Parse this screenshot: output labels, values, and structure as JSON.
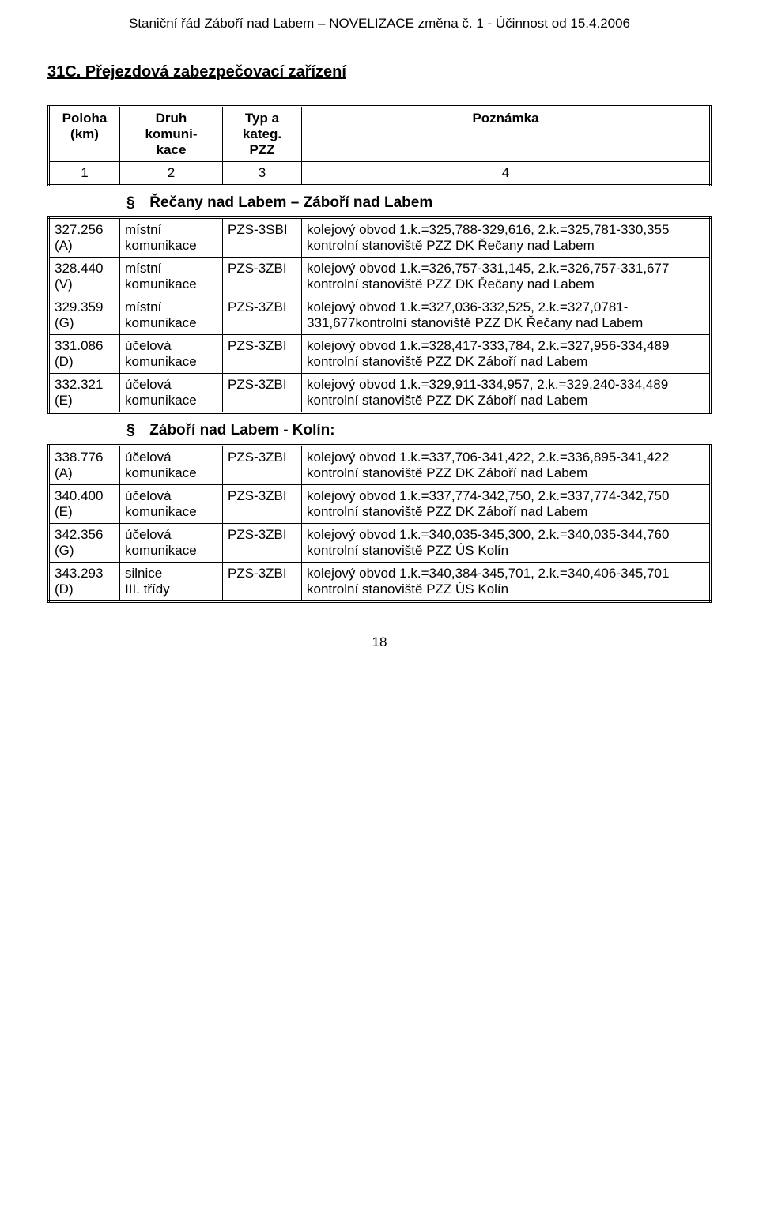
{
  "header": "Staniční řád Záboří nad Labem – NOVELIZACE změna č. 1 - Účinnost od 15.4.2006",
  "section_title": "31C. Přejezdová zabezpečovací zařízení",
  "header_table": {
    "h1": "Poloha\n(km)",
    "h2": "Druh\nkomuni-\nkace",
    "h3": "Typ a\nkateg.\nPZZ",
    "h4": "Poznámka",
    "r1": "1",
    "r2": "2",
    "r3": "3",
    "r4": "4"
  },
  "sub1_title": "Řečany nad Labem – Záboří nad Labem",
  "rows1": [
    {
      "c1": "327.256\n(A)",
      "c2": "místní\nkomunikace",
      "c3": "PZS-3SBI",
      "c4": "kolejový obvod 1.k.=325,788-329,616, 2.k.=325,781-330,355\nkontrolní stanoviště PZZ DK Řečany nad Labem"
    },
    {
      "c1": "328.440\n(V)",
      "c2": "místní\nkomunikace",
      "c3": "PZS-3ZBI",
      "c4": "kolejový obvod 1.k.=326,757-331,145, 2.k.=326,757-331,677\nkontrolní stanoviště PZZ DK Řečany nad Labem"
    },
    {
      "c1": "329.359\n(G)",
      "c2": "místní\nkomunikace",
      "c3": "PZS-3ZBI",
      "c4": "kolejový obvod 1.k.=327,036-332,525, 2.k.=327,0781-\n331,677kontrolní stanoviště PZZ DK Řečany nad Labem"
    },
    {
      "c1": "331.086\n(D)",
      "c2": "účelová\nkomunikace",
      "c3": "PZS-3ZBI",
      "c4": "kolejový obvod 1.k.=328,417-333,784, 2.k.=327,956-334,489\nkontrolní stanoviště PZZ DK Záboří nad Labem"
    },
    {
      "c1": "332.321\n(E)",
      "c2": "účelová\nkomunikace",
      "c3": "PZS-3ZBI",
      "c4": "kolejový obvod 1.k.=329,911-334,957, 2.k.=329,240-334,489\nkontrolní stanoviště PZZ DK Záboří nad Labem"
    }
  ],
  "sub2_title": "Záboří nad Labem - Kolín:",
  "rows2": [
    {
      "c1": "338.776\n(A)",
      "c2": "účelová\nkomunikace",
      "c3": "PZS-3ZBI",
      "c4": "kolejový obvod 1.k.=337,706-341,422, 2.k.=336,895-341,422\nkontrolní stanoviště PZZ DK Záboří nad Labem"
    },
    {
      "c1": "340.400\n(E)",
      "c2": "účelová\nkomunikace",
      "c3": "PZS-3ZBI",
      "c4": "kolejový obvod 1.k.=337,774-342,750, 2.k.=337,774-342,750\nkontrolní stanoviště PZZ DK Záboří nad Labem"
    },
    {
      "c1": "342.356\n(G)",
      "c2": "účelová\nkomunikace",
      "c3": "PZS-3ZBI",
      "c4": "kolejový obvod 1.k.=340,035-345,300, 2.k.=340,035-344,760\nkontrolní stanoviště PZZ ÚS Kolín"
    },
    {
      "c1": "343.293\n(D)",
      "c2": "silnice\nIII. třídy",
      "c3": "PZS-3ZBI",
      "c4": "kolejový obvod 1.k.=340,384-345,701, 2.k.=340,406-345,701\nkontrolní stanoviště PZZ ÚS Kolín"
    }
  ],
  "page_number": "18"
}
